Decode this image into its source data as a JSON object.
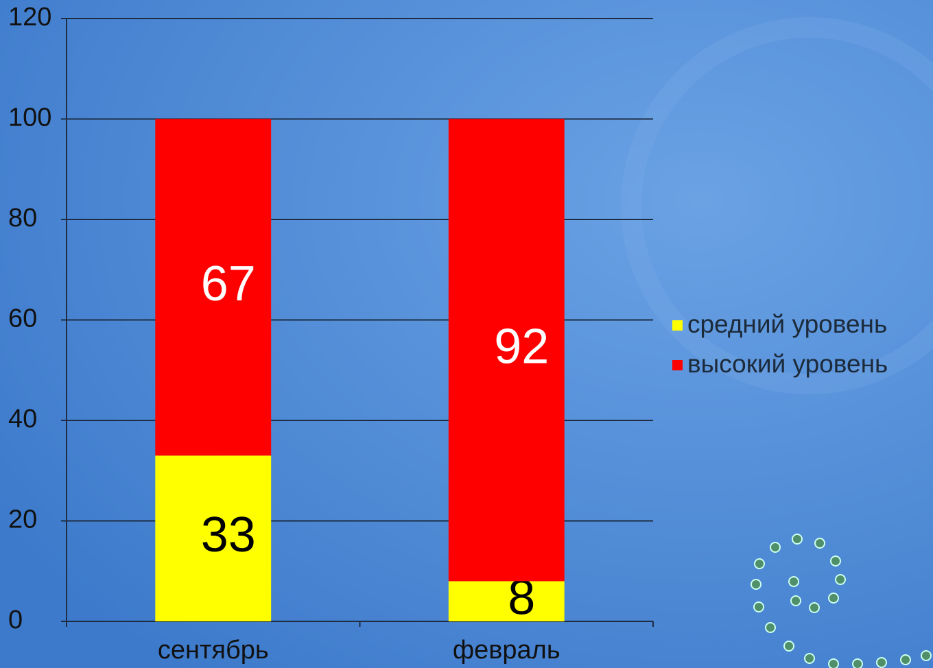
{
  "chart_data": {
    "type": "stacked_bar",
    "categories": [
      "сентябрь",
      "февраль"
    ],
    "series": [
      {
        "name": "средний уровень",
        "color": "#ffff00",
        "values": [
          33,
          8
        ]
      },
      {
        "name": "высокий уровень",
        "color": "#ff0000",
        "values": [
          67,
          92
        ]
      }
    ],
    "ylim": [
      0,
      120
    ],
    "yticks": [
      0,
      20,
      40,
      60,
      80,
      100,
      120
    ],
    "grid": true,
    "legend": "right"
  }
}
